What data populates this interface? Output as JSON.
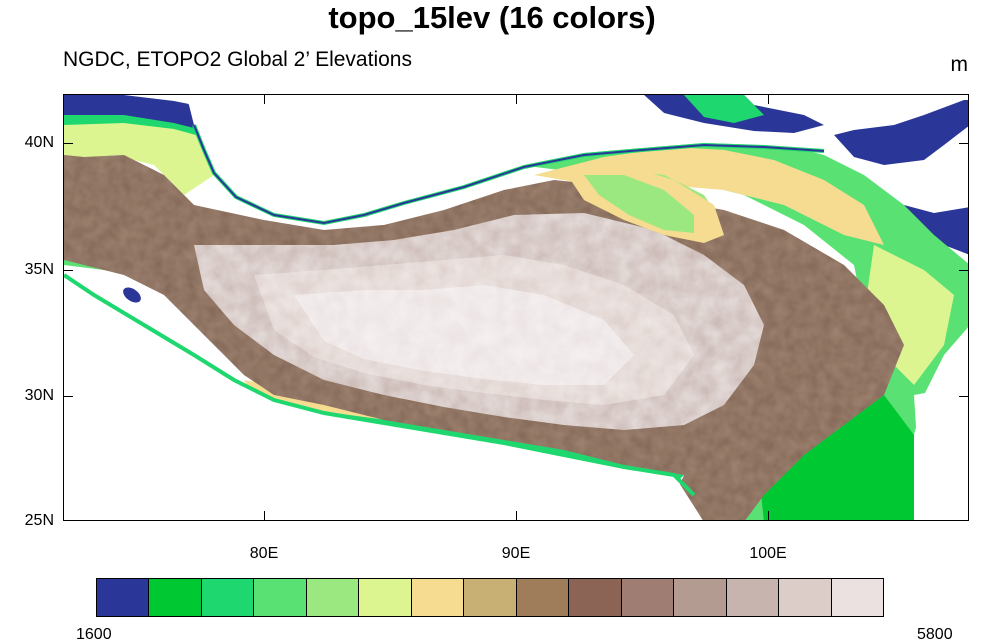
{
  "title": "topo_15lev (16 colors)",
  "subtitle": "NGDC, ETOPO2 Global 2’ Elevations",
  "units": "m",
  "axes": {
    "y_labels": [
      "40N",
      "35N",
      "30N",
      "25N"
    ],
    "x_labels": [
      "80E",
      "90E",
      "100E"
    ]
  },
  "colorbar": {
    "min_label": "1600",
    "max_label": "5800",
    "colors": [
      "#2b3798",
      "#00c832",
      "#1ed76e",
      "#5ae173",
      "#9be880",
      "#dcf591",
      "#f5dc91",
      "#c8af73",
      "#a07d5a",
      "#8c6455",
      "#a07d73",
      "#b49b91",
      "#c8b4af",
      "#dccdc8",
      "#ebe1e1"
    ]
  },
  "colors": {
    "ocean_lowland": "#ffffff",
    "low": "#2b3798",
    "plateau": "#a08472",
    "peaks": "#ebe1e1"
  }
}
